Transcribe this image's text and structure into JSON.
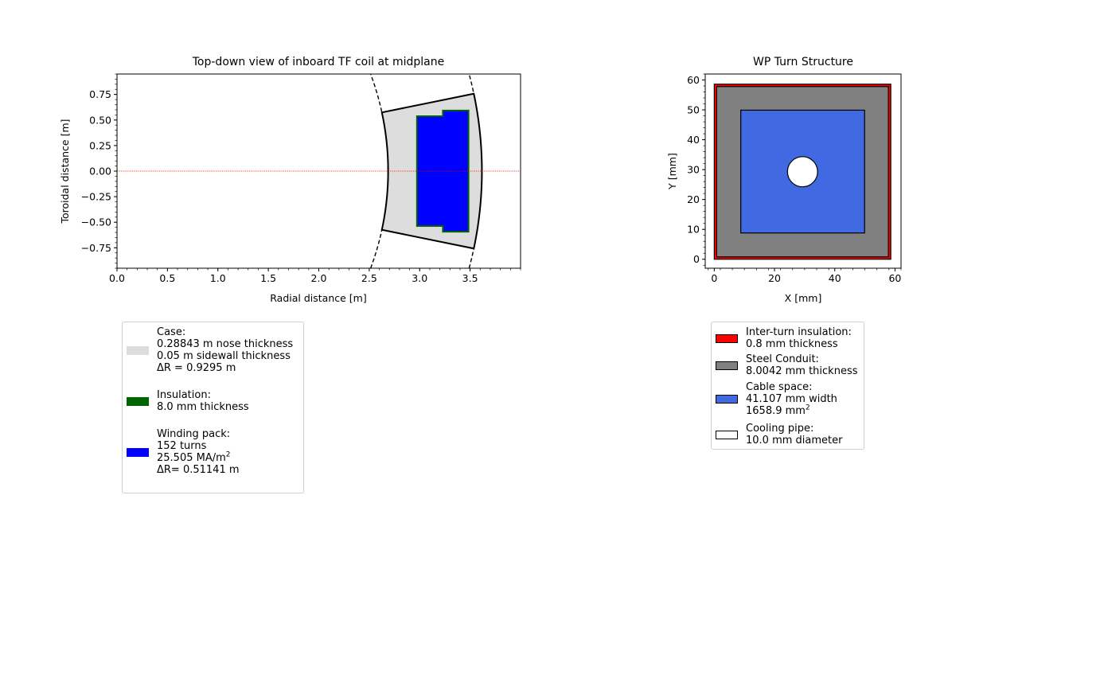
{
  "chart_data": [
    {
      "type": "area",
      "title": "Top-down view of inboard TF coil at midplane",
      "xlabel": "Radial distance [m]",
      "ylabel": "Toroidal distance [m]",
      "xlim": [
        0.0,
        4.0
      ],
      "ylim": [
        -0.95,
        0.95
      ],
      "x_ticks": [
        "0.0",
        "0.5",
        "1.0",
        "1.5",
        "2.0",
        "2.5",
        "3.0",
        "3.5"
      ],
      "x_tick_values": [
        0.0,
        0.5,
        1.0,
        1.5,
        2.0,
        2.5,
        3.0,
        3.5
      ],
      "y_ticks": [
        "−0.75",
        "−0.50",
        "−0.25",
        "0.00",
        "0.25",
        "0.50",
        "0.75"
      ],
      "y_tick_values": [
        -0.75,
        -0.5,
        -0.25,
        0.0,
        0.25,
        0.5,
        0.75
      ],
      "grid": false,
      "midplane_line": {
        "y": 0.0,
        "color": "#ff0000"
      },
      "case_outline": {
        "inner_radius": 2.6874,
        "outer_radius": 3.6169,
        "inner_corner": [
          2.6362,
          0.5763
        ],
        "outer_corner": [
          3.5355,
          0.7571
        ],
        "fill": "#dddddd"
      },
      "dashed_arcs": [
        {
          "radius": 2.6874,
          "y_range": [
            -0.95,
            0.95
          ]
        },
        {
          "radius": 3.6169,
          "y_range": [
            -0.95,
            0.95
          ]
        }
      ],
      "winding_pack": {
        "polygon": [
          [
            2.973,
            0.537
          ],
          [
            3.23,
            0.537
          ],
          [
            3.23,
            0.593
          ],
          [
            3.484,
            0.593
          ],
          [
            3.484,
            -0.593
          ],
          [
            3.23,
            -0.593
          ],
          [
            3.23,
            -0.537
          ],
          [
            2.973,
            -0.537
          ]
        ],
        "fill": "#0000ff",
        "edge": "#006400"
      },
      "legend": {
        "location": "below",
        "entries": [
          {
            "color": "#dddddd",
            "lines": [
              "Case:",
              "0.28843 m nose thickness",
              "0.05 m sidewall thickness",
              "ΔR = 0.9295 m"
            ]
          },
          {
            "color": "#006400",
            "lines": [
              "Insulation:",
              "8.0 mm thickness"
            ]
          },
          {
            "color": "#0000ff",
            "lines": [
              "Winding pack:",
              "152 turns",
              "25.505 MA/m",
              "ΔR= 0.51141 m"
            ],
            "sup": {
              "line": 2,
              "text": "2"
            }
          }
        ]
      }
    },
    {
      "type": "area",
      "title": "WP Turn Structure",
      "xlabel": "X [mm]",
      "ylabel": "Y [mm]",
      "xlim": [
        -3,
        62
      ],
      "ylim": [
        -3,
        62
      ],
      "x_ticks": [
        "0",
        "20",
        "40",
        "60"
      ],
      "x_tick_values": [
        0,
        20,
        40,
        60
      ],
      "y_ticks": [
        "0",
        "10",
        "20",
        "30",
        "40",
        "50",
        "60"
      ],
      "y_tick_values": [
        0,
        10,
        20,
        30,
        40,
        50,
        60
      ],
      "grid": false,
      "layers": {
        "insulation": {
          "x0": 0,
          "y0": 0,
          "x1": 58.6,
          "y1": 58.6,
          "color": "#ff0000"
        },
        "conduit": {
          "x0": 0.8,
          "y0": 0.8,
          "x1": 57.8,
          "y1": 57.8,
          "color": "#808080"
        },
        "cable_space": {
          "x0": 8.8,
          "y0": 8.8,
          "x1": 49.9,
          "y1": 49.9,
          "color": "#4169e1"
        },
        "cooling_pipe": {
          "cx": 29.3,
          "cy": 29.3,
          "r": 5.0,
          "color": "#ffffff"
        }
      },
      "legend": {
        "location": "below",
        "entries": [
          {
            "color": "#ff0000",
            "lines": [
              "Inter-turn insulation:",
              "0.8 mm thickness"
            ]
          },
          {
            "color": "#808080",
            "lines": [
              "Steel Conduit:",
              "8.0042 mm thickness"
            ]
          },
          {
            "color": "#4169e1",
            "lines": [
              "Cable space:",
              "41.107 mm width",
              "1658.9 mm"
            ],
            "sup": {
              "line": 2,
              "text": "2"
            }
          },
          {
            "color": "#ffffff",
            "lines": [
              "Cooling pipe:",
              "10.0 mm diameter"
            ]
          }
        ]
      }
    }
  ]
}
